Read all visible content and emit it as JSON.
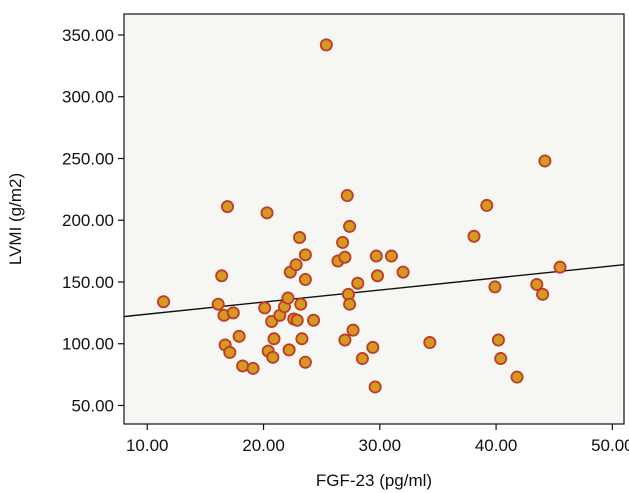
{
  "chart_data": {
    "type": "scatter",
    "xlabel": "FGF-23 (pg/ml)",
    "ylabel": "LVMI (g/m2)",
    "xlim": [
      8,
      51
    ],
    "ylim": [
      35,
      367
    ],
    "xticks": [
      "10.00",
      "20.00",
      "30.00",
      "40.00",
      "50.00"
    ],
    "xtick_values": [
      10,
      20,
      30,
      40,
      50
    ],
    "yticks": [
      "50.00",
      "100.00",
      "150.00",
      "200.00",
      "250.00",
      "300.00",
      "350.00"
    ],
    "ytick_values": [
      50,
      100,
      150,
      200,
      250,
      300,
      350
    ],
    "grid": false,
    "colors": {
      "plot_bg": "#f6f6f2",
      "marker_fill": "#d49a1f",
      "marker_edge": "#c0392b",
      "fit_line": "#111111"
    },
    "fit_line": {
      "x": [
        8,
        51
      ],
      "y": [
        122,
        164
      ]
    },
    "points": [
      {
        "x": 11.4,
        "y": 134
      },
      {
        "x": 16.1,
        "y": 132
      },
      {
        "x": 16.4,
        "y": 155
      },
      {
        "x": 16.6,
        "y": 123
      },
      {
        "x": 16.7,
        "y": 99
      },
      {
        "x": 16.9,
        "y": 211
      },
      {
        "x": 17.1,
        "y": 93
      },
      {
        "x": 17.4,
        "y": 125
      },
      {
        "x": 17.9,
        "y": 106
      },
      {
        "x": 18.2,
        "y": 82
      },
      {
        "x": 19.1,
        "y": 80
      },
      {
        "x": 20.1,
        "y": 129
      },
      {
        "x": 20.3,
        "y": 206
      },
      {
        "x": 20.4,
        "y": 94
      },
      {
        "x": 20.7,
        "y": 118
      },
      {
        "x": 20.8,
        "y": 89
      },
      {
        "x": 20.9,
        "y": 104
      },
      {
        "x": 21.4,
        "y": 123
      },
      {
        "x": 21.8,
        "y": 130
      },
      {
        "x": 22.1,
        "y": 137
      },
      {
        "x": 22.2,
        "y": 95
      },
      {
        "x": 22.3,
        "y": 158
      },
      {
        "x": 22.6,
        "y": 120
      },
      {
        "x": 22.8,
        "y": 164
      },
      {
        "x": 22.9,
        "y": 119
      },
      {
        "x": 23.1,
        "y": 186
      },
      {
        "x": 23.2,
        "y": 132
      },
      {
        "x": 23.3,
        "y": 104
      },
      {
        "x": 23.6,
        "y": 172
      },
      {
        "x": 23.6,
        "y": 152
      },
      {
        "x": 23.6,
        "y": 85
      },
      {
        "x": 24.3,
        "y": 119
      },
      {
        "x": 25.4,
        "y": 342
      },
      {
        "x": 26.4,
        "y": 167
      },
      {
        "x": 26.8,
        "y": 182
      },
      {
        "x": 27.0,
        "y": 103
      },
      {
        "x": 27.0,
        "y": 170
      },
      {
        "x": 27.2,
        "y": 220
      },
      {
        "x": 27.3,
        "y": 140
      },
      {
        "x": 27.4,
        "y": 195
      },
      {
        "x": 27.4,
        "y": 132
      },
      {
        "x": 27.7,
        "y": 111
      },
      {
        "x": 28.1,
        "y": 149
      },
      {
        "x": 28.5,
        "y": 88
      },
      {
        "x": 29.4,
        "y": 97
      },
      {
        "x": 29.6,
        "y": 65
      },
      {
        "x": 29.7,
        "y": 171
      },
      {
        "x": 29.8,
        "y": 155
      },
      {
        "x": 31.0,
        "y": 171
      },
      {
        "x": 32.0,
        "y": 158
      },
      {
        "x": 34.3,
        "y": 101
      },
      {
        "x": 38.1,
        "y": 187
      },
      {
        "x": 39.2,
        "y": 212
      },
      {
        "x": 39.9,
        "y": 146
      },
      {
        "x": 40.2,
        "y": 103
      },
      {
        "x": 40.4,
        "y": 88
      },
      {
        "x": 41.8,
        "y": 73
      },
      {
        "x": 43.5,
        "y": 148
      },
      {
        "x": 44.0,
        "y": 140
      },
      {
        "x": 44.2,
        "y": 248
      },
      {
        "x": 45.5,
        "y": 162
      }
    ]
  }
}
